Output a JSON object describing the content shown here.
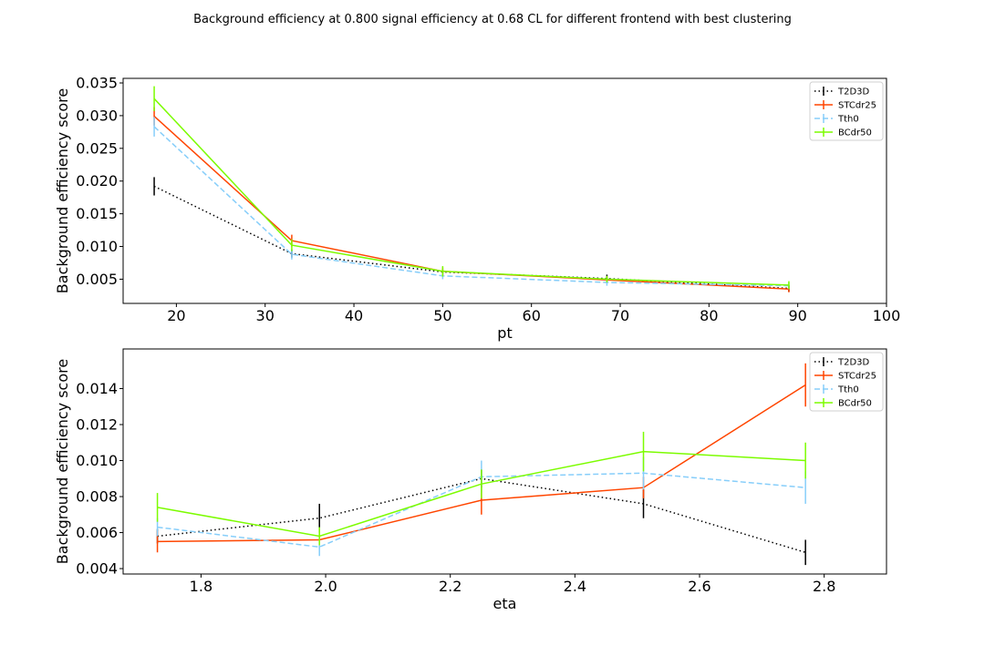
{
  "figure_title": "Background efficiency at 0.800 signal efficiency at 0.68 CL for different frontend with best clustering",
  "series_styles": [
    {
      "name": "T2D3D",
      "color": "#000000",
      "dash": "1.5,3"
    },
    {
      "name": "STCdr25",
      "color": "#ff4500",
      "dash": ""
    },
    {
      "name": "Tth0",
      "color": "#87cefa",
      "dash": "6,3"
    },
    {
      "name": "BCdr50",
      "color": "#7cfc00",
      "dash": ""
    }
  ],
  "chart_data": [
    {
      "type": "line",
      "xlabel": "pt",
      "ylabel": "Background efficiency score",
      "xlim": [
        14,
        100
      ],
      "ylim": [
        0.0013,
        0.0357
      ],
      "xticks": [
        20,
        30,
        40,
        50,
        60,
        70,
        80,
        90,
        100
      ],
      "yticks": [
        0.005,
        0.01,
        0.015,
        0.02,
        0.025,
        0.03,
        0.035
      ],
      "ytick_labels": [
        "0.005",
        "0.010",
        "0.015",
        "0.020",
        "0.025",
        "0.030",
        "0.035"
      ],
      "legend": "top-right",
      "series": [
        {
          "name": "T2D3D",
          "x": [
            17.5,
            33,
            50,
            68.5,
            89
          ],
          "values": [
            0.0192,
            0.0089,
            0.0061,
            0.0051,
            0.0036
          ],
          "errors": [
            0.0014,
            0.0006,
            0.0004,
            0.0006,
            0.0005
          ]
        },
        {
          "name": "STCdr25",
          "x": [
            17.5,
            33,
            50,
            68.5,
            89
          ],
          "values": [
            0.0299,
            0.0109,
            0.0062,
            0.0049,
            0.0035
          ],
          "errors": [
            0.0014,
            0.0009,
            0.0006,
            0.0005,
            0.0005
          ]
        },
        {
          "name": "Tth0",
          "x": [
            17.5,
            33,
            50,
            68.5,
            89
          ],
          "values": [
            0.0283,
            0.0088,
            0.0055,
            0.0045,
            0.004
          ],
          "errors": [
            0.0015,
            0.0008,
            0.0005,
            0.0005,
            0.0005
          ]
        },
        {
          "name": "BCdr50",
          "x": [
            17.5,
            33,
            50,
            68.5,
            89
          ],
          "values": [
            0.0326,
            0.0102,
            0.0062,
            0.005,
            0.0041
          ],
          "errors": [
            0.0019,
            0.0009,
            0.0008,
            0.0005,
            0.0006
          ]
        }
      ]
    },
    {
      "type": "line",
      "xlabel": "eta",
      "ylabel": "Background efficiency score",
      "xlim": [
        1.675,
        2.9
      ],
      "ylim": [
        0.0037,
        0.0162
      ],
      "xticks": [
        1.8,
        2.0,
        2.2,
        2.4,
        2.6,
        2.8
      ],
      "xtick_labels": [
        "1.8",
        "2.0",
        "2.2",
        "2.4",
        "2.6",
        "2.8"
      ],
      "yticks": [
        0.004,
        0.006,
        0.008,
        0.01,
        0.012,
        0.014
      ],
      "ytick_labels": [
        "0.004",
        "0.006",
        "0.008",
        "0.010",
        "0.012",
        "0.014"
      ],
      "legend": "top-right",
      "series": [
        {
          "name": "T2D3D",
          "x": [
            1.73,
            1.99,
            2.25,
            2.51,
            2.77
          ],
          "values": [
            0.0058,
            0.0068,
            0.009,
            0.0076,
            0.0049
          ],
          "errors": [
            0.0004,
            0.0008,
            0.0005,
            0.0008,
            0.0007
          ]
        },
        {
          "name": "STCdr25",
          "x": [
            1.73,
            1.99,
            2.25,
            2.51,
            2.77
          ],
          "values": [
            0.0055,
            0.0056,
            0.0078,
            0.0085,
            0.0142
          ],
          "errors": [
            0.0006,
            0.0005,
            0.0008,
            0.0006,
            0.0012
          ]
        },
        {
          "name": "Tth0",
          "x": [
            1.73,
            1.99,
            2.25,
            2.51,
            2.77
          ],
          "values": [
            0.0063,
            0.0052,
            0.0091,
            0.0093,
            0.0085
          ],
          "errors": [
            0.0005,
            0.0005,
            0.0009,
            0.0009,
            0.0009
          ]
        },
        {
          "name": "BCdr50",
          "x": [
            1.73,
            1.99,
            2.25,
            2.51,
            2.77
          ],
          "values": [
            0.0074,
            0.0058,
            0.0087,
            0.0105,
            0.01
          ],
          "errors": [
            0.0008,
            0.0005,
            0.0008,
            0.0011,
            0.001
          ]
        }
      ]
    }
  ]
}
